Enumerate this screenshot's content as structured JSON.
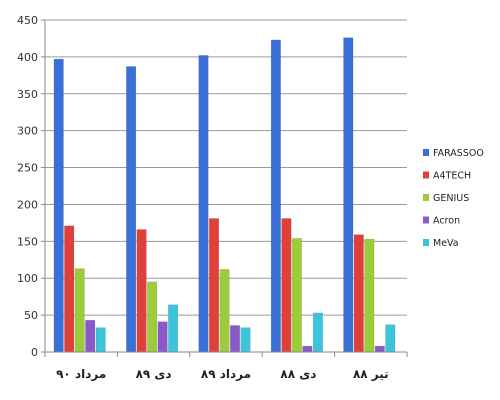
{
  "chart_data": {
    "type": "bar",
    "title": "",
    "xlabel": "",
    "ylabel": "",
    "ylim": [
      0,
      450
    ],
    "yticks": [
      0,
      50,
      100,
      150,
      200,
      250,
      300,
      350,
      400,
      450
    ],
    "grid": true,
    "legend_position": "right",
    "categories": [
      "مرداد ۹۰",
      "دی ۸۹",
      "مرداد ۸۹",
      "دی ۸۸",
      "تیر ۸۸"
    ],
    "series": [
      {
        "name": "FARASSOO",
        "color": "#3a6fd8",
        "values": [
          397,
          387,
          402,
          423,
          426
        ]
      },
      {
        "name": "A4TECH",
        "color": "#e0403a",
        "values": [
          171,
          166,
          181,
          181,
          159
        ]
      },
      {
        "name": "GENIUS",
        "color": "#9ccc3a",
        "values": [
          113,
          95,
          112,
          154,
          153
        ]
      },
      {
        "name": "Acron",
        "color": "#8a5ac8",
        "values": [
          43,
          41,
          36,
          8,
          8
        ]
      },
      {
        "name": "MeVa",
        "color": "#3cc4dc",
        "values": [
          33,
          64,
          33,
          53,
          37
        ]
      }
    ]
  }
}
